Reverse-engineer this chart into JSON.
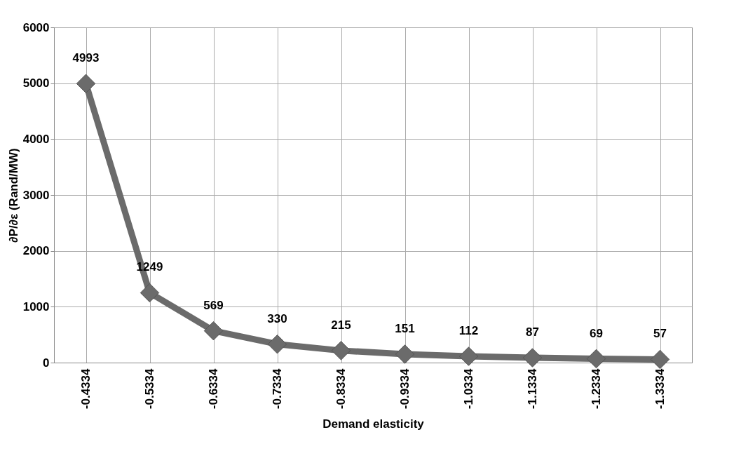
{
  "chart_data": {
    "type": "line",
    "xlabel": "Demand elasticity",
    "ylabel": "∂P/∂ε (Rand/MW)",
    "categories": [
      "-0.4334",
      "-0.5334",
      "-0.6334",
      "-0.7334",
      "-0.8334",
      "-0.9334",
      "-1.0334",
      "-1.1334",
      "-1.2334",
      "-1.3334"
    ],
    "series": [
      {
        "color": "#6b6b6b",
        "values": [
          4993,
          1249,
          569,
          330,
          215,
          151,
          112,
          87,
          69,
          57
        ]
      }
    ],
    "ylim": [
      0,
      6000
    ],
    "yticks": [
      0,
      1000,
      2000,
      3000,
      4000,
      5000,
      6000
    ],
    "grid": true,
    "marker": "diamond",
    "data_labels": true
  }
}
